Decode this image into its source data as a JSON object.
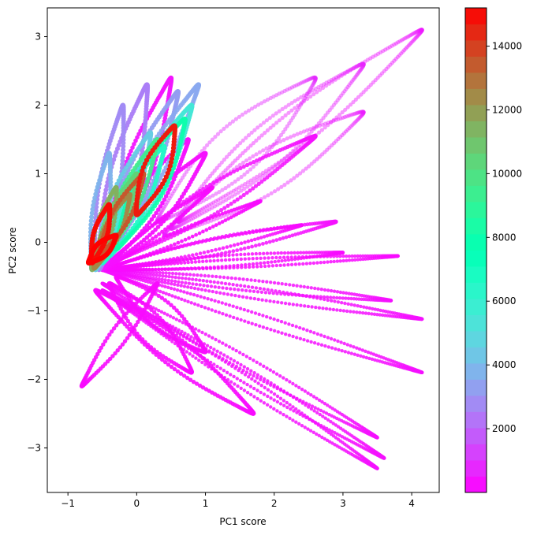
{
  "chart_data": {
    "type": "scatter",
    "title": "",
    "xlabel": "PC1 score",
    "ylabel": "PC2 score",
    "xlim": [
      -1.3,
      4.4
    ],
    "ylim": [
      -3.65,
      3.42
    ],
    "xticks": [
      -1,
      0,
      1,
      2,
      3,
      4
    ],
    "xtick_labels": [
      "−1",
      "0",
      "1",
      "2",
      "3",
      "4"
    ],
    "yticks": [
      -3,
      -2,
      -1,
      0,
      1,
      2,
      3
    ],
    "ytick_labels": [
      "−3",
      "−2",
      "−1",
      "0",
      "1",
      "2",
      "3"
    ],
    "grid": false,
    "colormap": "rainbow",
    "colorbar": {
      "min": 0,
      "max": 15200,
      "ticks": [
        2000,
        4000,
        6000,
        8000,
        10000,
        12000,
        14000
      ],
      "tick_labels": [
        "2000",
        "4000",
        "6000",
        "8000",
        "10000",
        "12000",
        "14000"
      ],
      "segments": 30
    },
    "trajectory_loops": [
      {
        "c": 500,
        "tip_x": 4.15,
        "tip_y": 3.1,
        "center_x": 0.6,
        "center_y": 0.3,
        "width": 0.25,
        "size": 2.6,
        "alpha": 0.45
      },
      {
        "c": 700,
        "tip_x": 3.3,
        "tip_y": 2.6,
        "center_x": 0.5,
        "center_y": 0.2,
        "width": 0.3,
        "size": 2.6,
        "alpha": 0.45
      },
      {
        "c": 800,
        "tip_x": 2.6,
        "tip_y": 2.4,
        "center_x": 0.3,
        "center_y": 0.3,
        "width": 0.35,
        "size": 2.6,
        "alpha": 0.45
      },
      {
        "c": 600,
        "tip_x": 3.3,
        "tip_y": 1.9,
        "center_x": 0.4,
        "center_y": 0.1,
        "width": 0.3,
        "size": 2.6,
        "alpha": 0.45
      },
      {
        "c": 300,
        "tip_x": 2.6,
        "tip_y": 1.55,
        "center_x": -0.4,
        "center_y": -0.3,
        "width": 0.2,
        "size": 2.6,
        "alpha": 0.85
      },
      {
        "c": 300,
        "tip_x": 2.9,
        "tip_y": 0.3,
        "center_x": -0.5,
        "center_y": -0.4,
        "width": 0.12,
        "size": 2.4,
        "alpha": 0.85
      },
      {
        "c": 300,
        "tip_x": 3.7,
        "tip_y": -0.85,
        "center_x": -0.5,
        "center_y": -0.4,
        "width": 0.08,
        "size": 2.2,
        "alpha": 0.85
      },
      {
        "c": 300,
        "tip_x": 4.15,
        "tip_y": -1.12,
        "center_x": -0.5,
        "center_y": -0.4,
        "width": 0.08,
        "size": 2.2,
        "alpha": 0.85
      },
      {
        "c": 300,
        "tip_x": 4.15,
        "tip_y": -1.9,
        "center_x": -0.5,
        "center_y": -0.4,
        "width": 0.08,
        "size": 2.2,
        "alpha": 0.85
      },
      {
        "c": 300,
        "tip_x": 3.5,
        "tip_y": -2.85,
        "center_x": -0.5,
        "center_y": -0.6,
        "width": 0.1,
        "size": 2.2,
        "alpha": 0.85
      },
      {
        "c": 300,
        "tip_x": 3.6,
        "tip_y": -3.15,
        "center_x": -0.5,
        "center_y": -0.7,
        "width": 0.1,
        "size": 2.2,
        "alpha": 0.85
      },
      {
        "c": 300,
        "tip_x": 3.5,
        "tip_y": -3.3,
        "center_x": -0.5,
        "center_y": -0.7,
        "width": 0.1,
        "size": 2.2,
        "alpha": 0.85
      },
      {
        "c": 200,
        "tip_x": 3.8,
        "tip_y": -0.2,
        "center_x": -0.5,
        "center_y": -0.4,
        "width": 0.06,
        "size": 2.2,
        "alpha": 0.85
      },
      {
        "c": 200,
        "tip_x": 3.0,
        "tip_y": -0.15,
        "center_x": -0.5,
        "center_y": -0.4,
        "width": 0.08,
        "size": 2.2,
        "alpha": 0.85
      },
      {
        "c": 200,
        "tip_x": 2.4,
        "tip_y": 0.25,
        "center_x": -0.5,
        "center_y": -0.4,
        "width": 0.08,
        "size": 2.3,
        "alpha": 0.85
      },
      {
        "c": 200,
        "tip_x": 1.8,
        "tip_y": 0.6,
        "center_x": -0.5,
        "center_y": -0.4,
        "width": 0.08,
        "size": 2.4,
        "alpha": 0.9
      },
      {
        "c": 200,
        "tip_x": 1.1,
        "tip_y": 0.8,
        "center_x": -0.5,
        "center_y": -0.4,
        "width": 0.08,
        "size": 2.6,
        "alpha": 0.9
      },
      {
        "c": 200,
        "tip_x": -0.8,
        "tip_y": -2.1,
        "center_x": 0.3,
        "center_y": -0.6,
        "width": 0.12,
        "size": 2.7,
        "alpha": 0.9
      },
      {
        "c": 200,
        "tip_x": 1.0,
        "tip_y": -1.6,
        "center_x": -0.3,
        "center_y": -0.5,
        "width": 0.2,
        "size": 2.7,
        "alpha": 0.9
      },
      {
        "c": 200,
        "tip_x": 0.8,
        "tip_y": -1.9,
        "center_x": -0.4,
        "center_y": -0.6,
        "width": 0.2,
        "size": 2.7,
        "alpha": 0.9
      },
      {
        "c": 200,
        "tip_x": 1.7,
        "tip_y": -2.5,
        "center_x": -0.6,
        "center_y": -0.7,
        "width": 0.2,
        "size": 2.7,
        "alpha": 0.9
      },
      {
        "c": 300,
        "tip_x": 1.0,
        "tip_y": 1.3,
        "center_x": -0.5,
        "center_y": -0.4,
        "width": 0.2,
        "size": 2.8,
        "alpha": 0.95
      },
      {
        "c": 300,
        "tip_x": 0.75,
        "tip_y": 1.5,
        "center_x": -0.5,
        "center_y": -0.4,
        "width": 0.2,
        "size": 2.8,
        "alpha": 0.95
      },
      {
        "c": 400,
        "tip_x": 0.5,
        "tip_y": 2.4,
        "center_x": -0.5,
        "center_y": -0.4,
        "width": 0.2,
        "size": 2.8,
        "alpha": 0.95
      },
      {
        "c": 2500,
        "tip_x": 0.15,
        "tip_y": 2.3,
        "center_x": -0.55,
        "center_y": -0.4,
        "width": 0.2,
        "size": 3.0,
        "alpha": 0.95
      },
      {
        "c": 2800,
        "tip_x": -0.2,
        "tip_y": 2.0,
        "center_x": -0.6,
        "center_y": -0.4,
        "width": 0.15,
        "size": 3.0,
        "alpha": 0.95
      },
      {
        "c": 3200,
        "tip_x": 0.6,
        "tip_y": 2.2,
        "center_x": -0.5,
        "center_y": -0.3,
        "width": 0.2,
        "size": 3.0,
        "alpha": 0.95
      },
      {
        "c": 3800,
        "tip_x": -0.4,
        "tip_y": 1.3,
        "center_x": -0.65,
        "center_y": -0.4,
        "width": 0.12,
        "size": 3.0,
        "alpha": 0.95
      },
      {
        "c": 3500,
        "tip_x": 0.9,
        "tip_y": 2.3,
        "center_x": -0.5,
        "center_y": -0.2,
        "width": 0.18,
        "size": 3.0,
        "alpha": 0.9
      },
      {
        "c": 4500,
        "tip_x": 0.2,
        "tip_y": 1.6,
        "center_x": -0.6,
        "center_y": -0.4,
        "width": 0.18,
        "size": 3.0,
        "alpha": 0.95
      },
      {
        "c": 5500,
        "tip_x": 0.8,
        "tip_y": 2.0,
        "center_x": -0.4,
        "center_y": -0.2,
        "width": 0.22,
        "size": 3.0,
        "alpha": 0.95
      },
      {
        "c": 6500,
        "tip_x": 0.4,
        "tip_y": 1.4,
        "center_x": -0.5,
        "center_y": -0.3,
        "width": 0.18,
        "size": 3.0,
        "alpha": 0.95
      },
      {
        "c": 8000,
        "tip_x": 0.7,
        "tip_y": 1.8,
        "center_x": -0.3,
        "center_y": -0.1,
        "width": 0.22,
        "size": 3.0,
        "alpha": 0.9
      },
      {
        "c": 9500,
        "tip_x": 0.3,
        "tip_y": 1.5,
        "center_x": -0.55,
        "center_y": -0.3,
        "width": 0.16,
        "size": 3.0,
        "alpha": 0.95
      },
      {
        "c": 10500,
        "tip_x": 0.0,
        "tip_y": 1.0,
        "center_x": -0.6,
        "center_y": -0.35,
        "width": 0.14,
        "size": 3.0,
        "alpha": 0.95
      },
      {
        "c": 11500,
        "tip_x": -0.3,
        "tip_y": 0.8,
        "center_x": -0.65,
        "center_y": -0.4,
        "width": 0.12,
        "size": 3.0,
        "alpha": 0.95
      },
      {
        "c": 12500,
        "tip_x": -0.1,
        "tip_y": 0.7,
        "center_x": -0.62,
        "center_y": -0.38,
        "width": 0.12,
        "size": 3.0,
        "alpha": 0.95
      },
      {
        "c": 13500,
        "tip_x": 0.1,
        "tip_y": 1.0,
        "center_x": -0.55,
        "center_y": -0.2,
        "width": 0.13,
        "size": 3.1,
        "alpha": 1.0
      },
      {
        "c": 14700,
        "tip_x": 0.55,
        "tip_y": 1.7,
        "center_x": 0.0,
        "center_y": 0.4,
        "width": 0.18,
        "size": 3.1,
        "alpha": 1.0
      },
      {
        "c": 15000,
        "tip_x": -0.4,
        "tip_y": 0.55,
        "center_x": -0.65,
        "center_y": -0.3,
        "width": 0.1,
        "size": 3.2,
        "alpha": 1.0
      },
      {
        "c": 15200,
        "tip_x": -0.3,
        "tip_y": 0.1,
        "center_x": -0.7,
        "center_y": -0.3,
        "width": 0.1,
        "size": 3.2,
        "alpha": 1.0
      }
    ]
  }
}
